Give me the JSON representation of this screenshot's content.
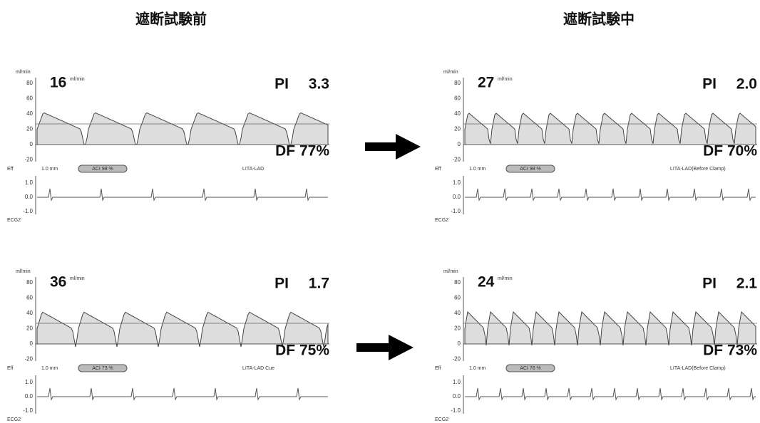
{
  "titles": [
    "遮断試験前",
    "遮断試験中"
  ],
  "flow_axis_label": "ml/min",
  "flow_ticks": [
    "80",
    "60",
    "40",
    "20",
    "0",
    "-20"
  ],
  "ecg_ticks": [
    "1.0",
    "0.0",
    "-1.0"
  ],
  "ecg_label": "ECG2",
  "eff_label": "Eff",
  "scale_label": "1.0 mm",
  "panels": [
    {
      "flow": 16,
      "unit": "ml/min",
      "pi_label": "PI",
      "pi": "3.3",
      "df": "DF 77%",
      "pill": "ACI 98 %",
      "vessel": "LITA-LAD"
    },
    {
      "flow": 27,
      "unit": "ml/min",
      "pi_label": "PI",
      "pi": "2.0",
      "df": "DF 70%",
      "pill": "ACI 98 %",
      "vessel": "LITA-LAD(Before Clamp)"
    },
    {
      "flow": 36,
      "unit": "ml/min",
      "pi_label": "PI",
      "pi": "1.7",
      "df": "DF 75%",
      "pill": "ACI 73 %",
      "vessel": "LITA-LAD Cue"
    },
    {
      "flow": 24,
      "unit": "ml/min",
      "pi_label": "PI",
      "pi": "2.1",
      "df": "DF 73%",
      "pill": "ACI 76 %",
      "vessel": "LITA-LAD(Before Clamp)"
    }
  ]
}
